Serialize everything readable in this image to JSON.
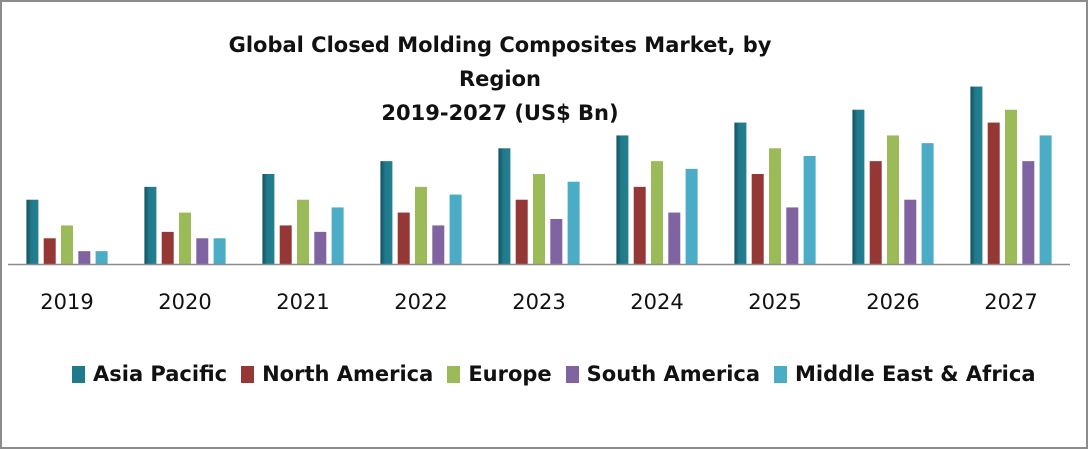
{
  "chart_data": {
    "type": "bar",
    "title": "Global Closed Molding Composites Market, by Region",
    "subtitle": "2019-2027 (US$ Bn)",
    "xlabel": "",
    "ylabel": "",
    "ylim": [
      0,
      14
    ],
    "grid": false,
    "legend_position": "bottom",
    "categories": [
      "2019",
      "2020",
      "2021",
      "2022",
      "2023",
      "2024",
      "2025",
      "2026",
      "2027"
    ],
    "series": [
      {
        "name": "Asia Pacific",
        "color": "#1f7a8c",
        "values": [
          5,
          6,
          7,
          8,
          9,
          10,
          11,
          12,
          13.8
        ]
      },
      {
        "name": "North America",
        "color": "#953735",
        "values": [
          2,
          2.5,
          3,
          4,
          5,
          6,
          7,
          8,
          11
        ]
      },
      {
        "name": "Europe",
        "color": "#9bbb59",
        "values": [
          3,
          4,
          5,
          6,
          7,
          8,
          9,
          10,
          12
        ]
      },
      {
        "name": "South America",
        "color": "#8064a2",
        "values": [
          1,
          2,
          2.5,
          3,
          3.5,
          4,
          4.4,
          5,
          8
        ]
      },
      {
        "name": "Middle East & Africa",
        "color": "#4bacc6",
        "values": [
          1,
          2,
          4.4,
          5.4,
          6.4,
          7.4,
          8.4,
          9.4,
          10
        ]
      }
    ]
  }
}
